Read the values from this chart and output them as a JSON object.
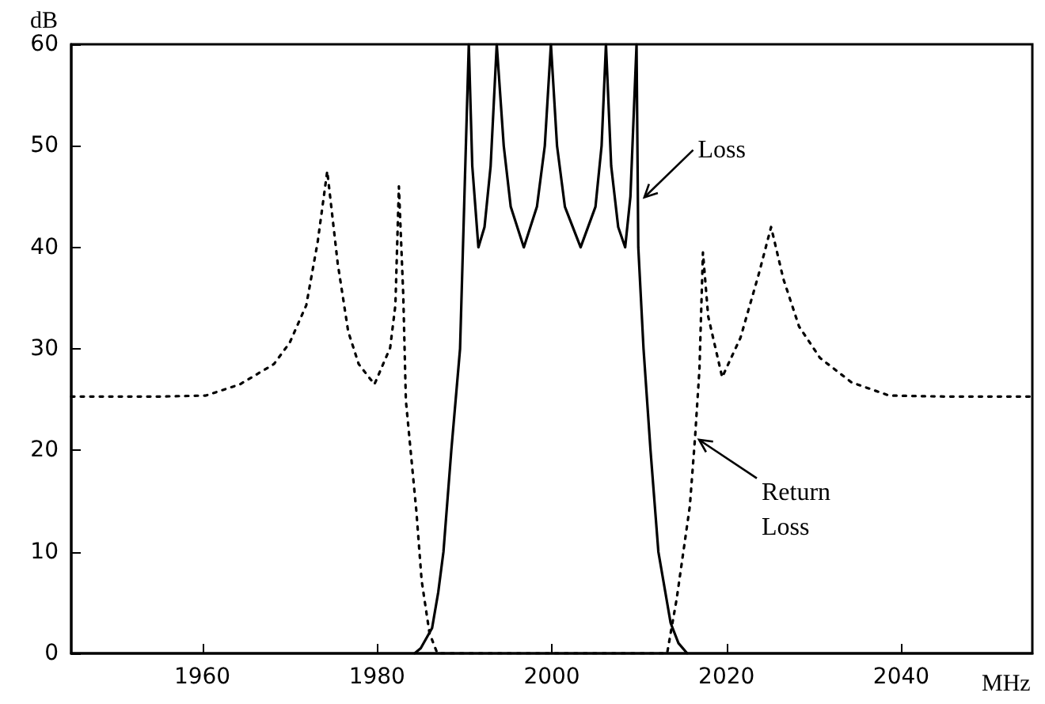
{
  "chart_data": {
    "type": "line",
    "xlabel": "MHz",
    "ylabel": "dB",
    "xlim": [
      1945,
      2055
    ],
    "xticks": [
      1960,
      1980,
      2000,
      2020,
      2040
    ],
    "ylim": [
      0,
      60
    ],
    "yticks": [
      0,
      10,
      20,
      30,
      40,
      50,
      60
    ],
    "grid": false,
    "marker": "none",
    "series": [
      {
        "color": "#000000",
        "line_style": "solid",
        "x": [
          1984.3,
          1985,
          1986.3,
          1987,
          1987.6,
          1988.5,
          1989.5,
          1990,
          1990.5,
          1990.9,
          1991.6,
          1992.3,
          1993,
          1993.7,
          1994.5,
          1995.3,
          1996.8,
          1998.3,
          1999.2,
          1999.9,
          2000.6,
          2001.5,
          2003.3,
          2005,
          2005.7,
          2006.2,
          2006.8,
          2007.6,
          2008.4,
          2009,
          2009.7,
          2009.9,
          2010.5,
          2011.3,
          2012.2,
          2013.6,
          2014.5,
          2015.5
        ],
        "values": [
          0,
          0.5,
          2.5,
          6,
          10,
          20,
          30,
          45,
          60,
          48,
          40,
          42,
          48,
          60,
          50,
          44,
          40,
          44,
          50,
          60,
          50,
          44,
          40,
          44,
          50,
          60,
          48,
          42,
          40,
          45,
          60,
          40,
          30,
          20,
          10,
          3,
          1,
          0
        ]
      },
      {
        "color": "#000000",
        "line_style": "dotted",
        "x": [
          1945,
          1955,
          1960.4,
          1964.3,
          1968.2,
          1970,
          1971.9,
          1973.2,
          1974.3,
          1975.5,
          1976.7,
          1977.9,
          1979.7,
          1981.5,
          1982.1,
          1982.5,
          1983,
          1983.3,
          1984.5,
          1985.1,
          1986,
          1986.9,
          2013.2,
          2014.3,
          2015.8,
          2016.4,
          2016.9,
          2017.3,
          2017.9,
          2019.5,
          2021.6,
          2023.7,
          2025.1,
          2026.5,
          2028.3,
          2030.7,
          2034.3,
          2038.6,
          2045,
          2055
        ],
        "values": [
          25.3,
          25.3,
          25.4,
          26.5,
          28.5,
          30.6,
          34.3,
          40.5,
          47.5,
          38.4,
          31.7,
          28.5,
          26.5,
          30.1,
          34.3,
          46,
          35.3,
          24.9,
          14,
          7.2,
          2,
          0,
          0,
          5.4,
          14.5,
          21.3,
          28,
          39.5,
          33.2,
          27.2,
          31.1,
          37.4,
          42,
          36.9,
          32.2,
          29.1,
          26.7,
          25.4,
          25.3,
          25.3
        ]
      }
    ],
    "annotations": [
      {
        "text": "Loss",
        "x": 2010.2,
        "y": 44.6
      },
      {
        "text": "Return\nLoss",
        "x": 2016.4,
        "y": 21.3
      }
    ]
  }
}
